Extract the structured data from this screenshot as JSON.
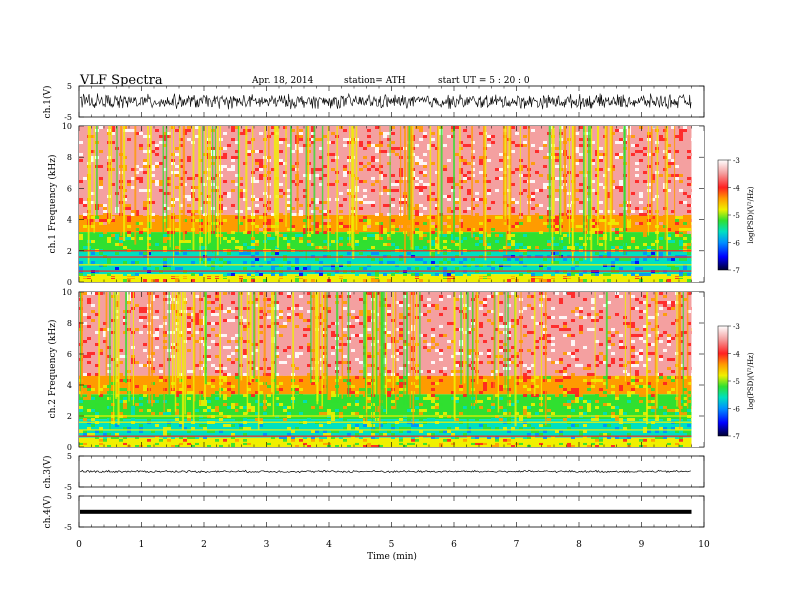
{
  "header": {
    "title": "VLF  Spectra",
    "date": "Apr. 18, 2014",
    "station": "station= ATH",
    "start": "start  UT  =    5  : 20 : 0"
  },
  "chart_data": {
    "type": "heatmap",
    "x_axis": {
      "label": "Time  (min)",
      "range": [
        0,
        10
      ],
      "ticks": [
        "0",
        "1",
        "2",
        "3",
        "4",
        "5",
        "6",
        "7",
        "8",
        "9",
        "10"
      ],
      "data_end": 9.8
    },
    "panels": [
      {
        "id": "ch1-waveform",
        "type": "line",
        "ylabel": "ch.1(V)",
        "ylim": [
          -5,
          5
        ],
        "yticks": [
          "5",
          "-5"
        ],
        "description_values": {
          "baseline": 0.0,
          "amplitude": 1.2
        }
      },
      {
        "id": "ch1-spectrogram",
        "type": "heatmap",
        "ylabel": "ch.1  Frequency  (kHz)",
        "ylim": [
          0,
          10
        ],
        "yticks": [
          "0",
          "2",
          "4",
          "6",
          "8",
          "10"
        ],
        "colorbar": {
          "label": "log(PSD)(V²/Hz)",
          "range": [
            -7,
            -3
          ],
          "ticks": [
            "-3",
            "-4",
            "-5",
            "-6",
            "-7"
          ]
        },
        "bands_khz": [
          {
            "from": 4.3,
            "to": 10.0,
            "level": -3.9
          },
          {
            "from": 3.2,
            "to": 4.3,
            "level": -4.6
          },
          {
            "from": 2.0,
            "to": 3.2,
            "level": -5.3
          },
          {
            "from": 0.5,
            "to": 2.0,
            "level": -5.9
          },
          {
            "from": 0.0,
            "to": 0.5,
            "level": -4.8
          }
        ]
      },
      {
        "id": "ch2-spectrogram",
        "type": "heatmap",
        "ylabel": "ch.2  Frequency  (kHz)",
        "ylim": [
          0,
          10
        ],
        "yticks": [
          "0",
          "2",
          "4",
          "6",
          "8",
          "10"
        ],
        "colorbar": {
          "label": "log(PSD)(V²/Hz)",
          "range": [
            -7,
            -3
          ],
          "ticks": [
            "-3",
            "-4",
            "-5",
            "-6",
            "-7"
          ]
        },
        "bands_khz": [
          {
            "from": 4.6,
            "to": 10.0,
            "level": -3.9
          },
          {
            "from": 3.4,
            "to": 4.6,
            "level": -4.7
          },
          {
            "from": 1.8,
            "to": 3.4,
            "level": -5.2
          },
          {
            "from": 0.6,
            "to": 1.8,
            "level": -5.6
          },
          {
            "from": 0.0,
            "to": 0.6,
            "level": -4.9
          }
        ]
      },
      {
        "id": "ch3-waveform",
        "type": "line",
        "ylabel": "ch.3(V)",
        "ylim": [
          -5,
          5
        ],
        "yticks": [
          "5",
          "-5"
        ],
        "description_values": {
          "baseline": 0.0,
          "amplitude": 0.15
        }
      },
      {
        "id": "ch4-waveform",
        "type": "line",
        "ylabel": "ch.4(V)",
        "ylim": [
          -5,
          5
        ],
        "yticks": [
          "5",
          "-5"
        ],
        "description_values": {
          "baseline": -0.1,
          "amplitude": 0.05
        }
      }
    ]
  }
}
